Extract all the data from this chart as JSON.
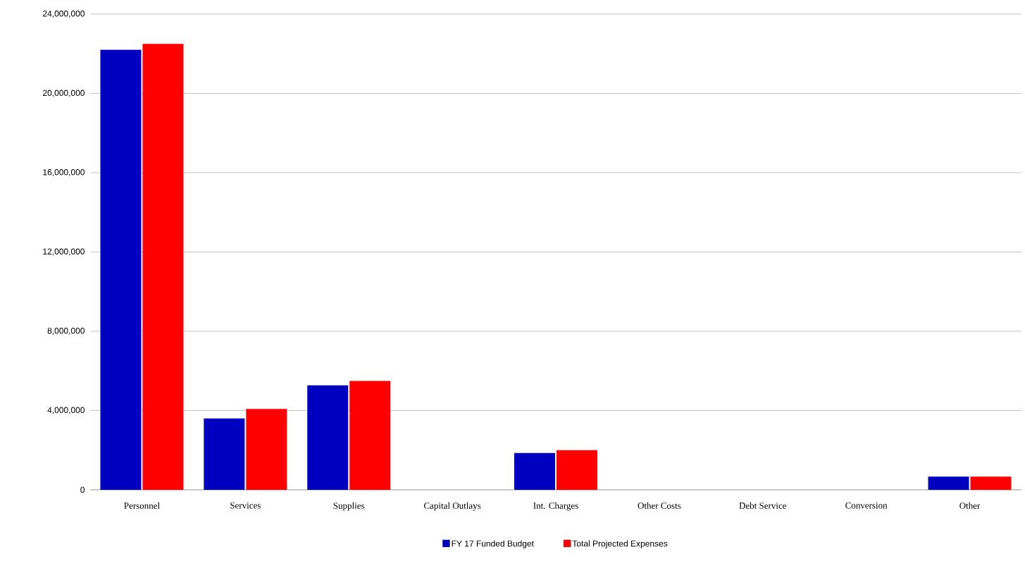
{
  "chart_data": {
    "type": "bar",
    "categories": [
      "Personnel",
      "Services",
      "Supplies",
      "Capital Outlays",
      "Int. Charges",
      "Other Costs",
      "Debt Service",
      "Conversion",
      "Other"
    ],
    "series": [
      {
        "name": "FY 17 Funded Budget",
        "color": "#0000c0",
        "values": [
          22200000,
          3600000,
          5270000,
          0,
          1860000,
          0,
          0,
          0,
          670000
        ]
      },
      {
        "name": "Total Projected Expenses",
        "color": "#ff0000",
        "values": [
          22500000,
          4080000,
          5490000,
          0,
          2000000,
          0,
          0,
          0,
          670000
        ]
      }
    ],
    "ylim": [
      0,
      24000000
    ],
    "yticks": [
      {
        "value": 0,
        "label": "0"
      },
      {
        "value": 4000000,
        "label": "4,000,000"
      },
      {
        "value": 8000000,
        "label": "8,000,000"
      },
      {
        "value": 12000000,
        "label": "12,000,000"
      },
      {
        "value": 16000000,
        "label": "16,000,000"
      },
      {
        "value": 20000000,
        "label": "20,000,000"
      },
      {
        "value": 24000000,
        "label": "24,000,000"
      }
    ],
    "grid": "y",
    "legend": "bottom"
  }
}
